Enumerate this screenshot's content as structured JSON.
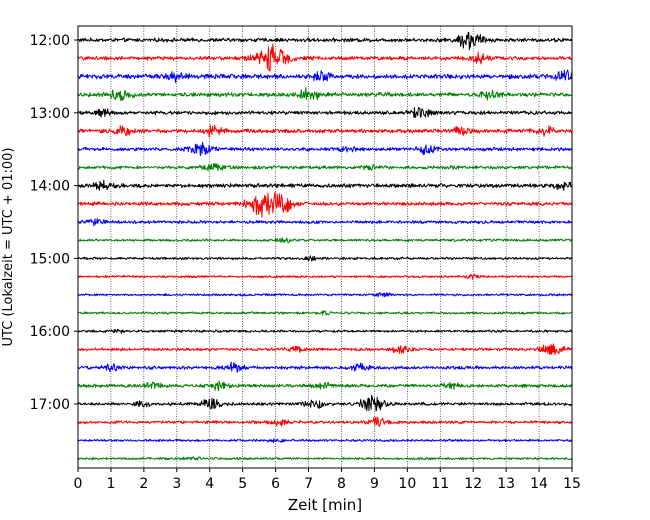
{
  "chart_data": {
    "type": "line",
    "title": "",
    "xlabel": "Zeit  [min]",
    "ylabel": "UTC (Lokalzeit = UTC + 01:00)",
    "xlim": [
      0,
      15
    ],
    "x_ticks": [
      "0",
      "1",
      "2",
      "3",
      "4",
      "5",
      "6",
      "7",
      "8",
      "9",
      "10",
      "11",
      "12",
      "13",
      "14",
      "15"
    ],
    "y_ticks": [
      "12:00",
      "13:00",
      "14:00",
      "15:00",
      "16:00",
      "17:00"
    ],
    "grid": "vertical dotted at each minute",
    "trace_interval_min": 15,
    "color_cycle": [
      "#000000",
      "#ff0000",
      "#0000ff",
      "#008000"
    ],
    "series": [
      {
        "start": "12:00",
        "amplitude": 0.35,
        "bursts": [
          {
            "t": 11.9,
            "a": 1.6
          }
        ]
      },
      {
        "start": "12:15",
        "amplitude": 0.35,
        "bursts": [
          {
            "t": 5.9,
            "a": 2.2
          },
          {
            "t": 12.2,
            "a": 0.7
          }
        ]
      },
      {
        "start": "12:30",
        "amplitude": 0.42,
        "bursts": [
          {
            "t": 3.0,
            "a": 0.8
          },
          {
            "t": 7.4,
            "a": 0.7
          },
          {
            "t": 14.8,
            "a": 1.0
          }
        ]
      },
      {
        "start": "12:45",
        "amplitude": 0.38,
        "bursts": [
          {
            "t": 1.3,
            "a": 0.9
          },
          {
            "t": 7.0,
            "a": 1.0
          },
          {
            "t": 12.5,
            "a": 0.7
          }
        ]
      },
      {
        "start": "13:00",
        "amplitude": 0.32,
        "bursts": [
          {
            "t": 10.4,
            "a": 0.9
          },
          {
            "t": 0.8,
            "a": 0.5
          }
        ]
      },
      {
        "start": "13:15",
        "amplitude": 0.35,
        "bursts": [
          {
            "t": 1.4,
            "a": 0.9
          },
          {
            "t": 4.1,
            "a": 0.9
          },
          {
            "t": 11.6,
            "a": 0.8
          },
          {
            "t": 14.2,
            "a": 0.7
          }
        ]
      },
      {
        "start": "13:30",
        "amplitude": 0.32,
        "bursts": [
          {
            "t": 3.7,
            "a": 1.1
          },
          {
            "t": 10.6,
            "a": 0.7
          },
          {
            "t": 8.2,
            "a": 0.5
          }
        ]
      },
      {
        "start": "13:45",
        "amplitude": 0.3,
        "bursts": [
          {
            "t": 4.1,
            "a": 0.6
          },
          {
            "t": 8.9,
            "a": 0.5
          }
        ]
      },
      {
        "start": "14:00",
        "amplitude": 0.36,
        "bursts": [
          {
            "t": 0.7,
            "a": 0.7
          },
          {
            "t": 14.8,
            "a": 0.8
          }
        ]
      },
      {
        "start": "14:15",
        "amplitude": 0.32,
        "bursts": [
          {
            "t": 5.6,
            "a": 2.0
          },
          {
            "t": 6.2,
            "a": 1.3
          }
        ]
      },
      {
        "start": "14:30",
        "amplitude": 0.28,
        "bursts": [
          {
            "t": 0.5,
            "a": 0.5
          }
        ]
      },
      {
        "start": "14:45",
        "amplitude": 0.22,
        "bursts": [
          {
            "t": 6.2,
            "a": 0.4
          }
        ]
      },
      {
        "start": "15:00",
        "amplitude": 0.22,
        "bursts": [
          {
            "t": 7.1,
            "a": 0.4
          }
        ]
      },
      {
        "start": "15:15",
        "amplitude": 0.2,
        "bursts": [
          {
            "t": 12.0,
            "a": 0.3
          }
        ]
      },
      {
        "start": "15:30",
        "amplitude": 0.2,
        "bursts": [
          {
            "t": 9.3,
            "a": 0.3
          }
        ]
      },
      {
        "start": "15:45",
        "amplitude": 0.2,
        "bursts": [
          {
            "t": 7.5,
            "a": 0.3
          }
        ]
      },
      {
        "start": "16:00",
        "amplitude": 0.22,
        "bursts": [
          {
            "t": 1.2,
            "a": 0.3
          }
        ]
      },
      {
        "start": "16:15",
        "amplitude": 0.26,
        "bursts": [
          {
            "t": 6.6,
            "a": 0.6
          },
          {
            "t": 9.8,
            "a": 0.7
          },
          {
            "t": 14.4,
            "a": 1.1
          }
        ]
      },
      {
        "start": "16:30",
        "amplitude": 0.3,
        "bursts": [
          {
            "t": 1.0,
            "a": 0.6
          },
          {
            "t": 4.7,
            "a": 0.8
          },
          {
            "t": 8.6,
            "a": 0.6
          }
        ]
      },
      {
        "start": "16:45",
        "amplitude": 0.3,
        "bursts": [
          {
            "t": 2.3,
            "a": 0.6
          },
          {
            "t": 4.3,
            "a": 0.7
          },
          {
            "t": 7.4,
            "a": 0.7
          },
          {
            "t": 11.3,
            "a": 0.5
          }
        ]
      },
      {
        "start": "17:00",
        "amplitude": 0.28,
        "bursts": [
          {
            "t": 2.0,
            "a": 0.5
          },
          {
            "t": 4.0,
            "a": 0.9
          },
          {
            "t": 7.2,
            "a": 0.8
          },
          {
            "t": 8.9,
            "a": 1.4
          }
        ]
      },
      {
        "start": "17:15",
        "amplitude": 0.26,
        "bursts": [
          {
            "t": 6.1,
            "a": 0.6
          },
          {
            "t": 9.1,
            "a": 0.8
          }
        ]
      },
      {
        "start": "17:30",
        "amplitude": 0.2,
        "bursts": [
          {
            "t": 6.0,
            "a": 0.3
          }
        ]
      },
      {
        "start": "17:45",
        "amplitude": 0.2,
        "bursts": [
          {
            "t": 3.5,
            "a": 0.3
          }
        ]
      }
    ]
  }
}
